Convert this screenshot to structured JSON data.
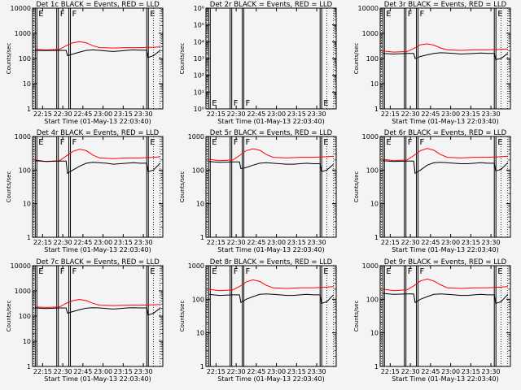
{
  "chart_data": [
    {
      "type": "line",
      "title": "Det 1c BLACK = Events, RED = LLD",
      "xlabel": "Start Time (01-May-13 22:03:40)",
      "ylabel": "Counts/sec",
      "xlim": [
        0,
        97
      ],
      "ylim": [
        1,
        10000
      ],
      "yscale": "log",
      "xticks": [
        "22:15",
        "22:30",
        "22:45",
        "23:00",
        "23:15",
        "23:30"
      ],
      "yticks": [
        "1",
        "10",
        "100",
        "1000",
        "10000"
      ],
      "flags": [
        {
          "label": "E",
          "x": 2
        },
        {
          "label": "F",
          "x": 18
        },
        {
          "label": "F",
          "x": 27
        },
        {
          "label": "E",
          "x": 85
        }
      ],
      "series": [
        {
          "color": "#ff0000",
          "x": [
            2,
            10,
            20,
            25,
            30,
            35,
            40,
            45,
            50,
            60,
            70,
            80,
            90,
            95
          ],
          "values": [
            230,
            220,
            230,
            320,
            420,
            470,
            420,
            320,
            270,
            260,
            270,
            270,
            280,
            290
          ]
        },
        {
          "color": "#000000",
          "x": [
            2,
            10,
            20,
            25,
            26,
            30,
            35,
            40,
            45,
            50,
            55,
            60,
            65,
            70,
            75,
            80,
            85,
            86,
            90,
            95
          ],
          "values": [
            210,
            205,
            210,
            210,
            130,
            150,
            180,
            210,
            220,
            210,
            200,
            190,
            200,
            210,
            220,
            215,
            215,
            110,
            130,
            210
          ]
        }
      ]
    },
    {
      "type": "line",
      "title": "Det 2r BLACK = Events, RED = LLD",
      "xlabel": "Start Time (01-May-13 22:03:40)",
      "ylabel": "Counts/sec",
      "xlim": [
        0,
        97
      ],
      "ylim": [
        1,
        1000000
      ],
      "yscale": "log",
      "xticks": [
        "22:15",
        "22:30",
        "22:45",
        "23:00",
        "23:15",
        "23:30"
      ],
      "yticks": [
        "10⁰",
        "10¹",
        "10²",
        "10³",
        "10⁴",
        "10⁵",
        "10⁶"
      ],
      "flags": [
        {
          "label": "E",
          "x": 2
        },
        {
          "label": "F",
          "x": 18
        },
        {
          "label": "F",
          "x": 27
        },
        {
          "label": "E",
          "x": 85
        }
      ],
      "series": []
    },
    {
      "type": "line",
      "title": "Det 3r BLACK = Events, RED = LLD",
      "xlabel": "Start Time (01-May-13 22:03:40)",
      "ylabel": "Counts/sec",
      "xlim": [
        0,
        97
      ],
      "ylim": [
        1,
        10000
      ],
      "yscale": "log",
      "xticks": [
        "22:15",
        "22:30",
        "22:45",
        "23:00",
        "23:15",
        "23:30"
      ],
      "yticks": [
        "1",
        "10",
        "100",
        "1000",
        "10000"
      ],
      "flags": [
        {
          "label": "E",
          "x": 2
        },
        {
          "label": "F",
          "x": 18
        },
        {
          "label": "F",
          "x": 27
        },
        {
          "label": "E",
          "x": 85
        }
      ],
      "series": [
        {
          "color": "#ff0000",
          "x": [
            2,
            10,
            20,
            25,
            30,
            35,
            40,
            45,
            50,
            60,
            70,
            80,
            90,
            95
          ],
          "values": [
            200,
            180,
            190,
            250,
            350,
            380,
            340,
            260,
            220,
            210,
            220,
            220,
            230,
            240
          ]
        },
        {
          "color": "#000000",
          "x": [
            2,
            10,
            20,
            25,
            26,
            30,
            35,
            40,
            45,
            50,
            55,
            60,
            65,
            70,
            75,
            80,
            85,
            86,
            90,
            95
          ],
          "values": [
            160,
            150,
            160,
            160,
            100,
            120,
            140,
            160,
            170,
            165,
            160,
            150,
            155,
            160,
            165,
            160,
            160,
            90,
            100,
            160
          ]
        }
      ]
    },
    {
      "type": "line",
      "title": "Det 4r BLACK = Events, RED = LLD",
      "xlabel": "Start Time (01-May-13 22:03:40)",
      "ylabel": "Counts/sec",
      "xlim": [
        0,
        97
      ],
      "ylim": [
        1,
        1000
      ],
      "yscale": "log",
      "xticks": [
        "22:15",
        "22:30",
        "22:45",
        "23:00",
        "23:15",
        "23:30"
      ],
      "yticks": [
        "1",
        "10",
        "100",
        "1000"
      ],
      "flags": [
        {
          "label": "E",
          "x": 2
        },
        {
          "label": "F",
          "x": 18
        },
        {
          "label": "F",
          "x": 27
        },
        {
          "label": "E",
          "x": 85
        }
      ],
      "series": [
        {
          "color": "#ff0000",
          "x": [
            2,
            10,
            20,
            25,
            30,
            35,
            40,
            45,
            50,
            60,
            70,
            80,
            90,
            95
          ],
          "values": [
            200,
            180,
            190,
            260,
            360,
            420,
            380,
            280,
            230,
            220,
            230,
            230,
            240,
            250
          ]
        },
        {
          "color": "#000000",
          "x": [
            2,
            10,
            20,
            25,
            26,
            30,
            35,
            40,
            45,
            50,
            55,
            60,
            65,
            70,
            75,
            80,
            85,
            86,
            90,
            95
          ],
          "values": [
            190,
            180,
            185,
            185,
            80,
            100,
            130,
            160,
            170,
            165,
            160,
            150,
            155,
            160,
            165,
            160,
            160,
            90,
            100,
            160
          ]
        }
      ]
    },
    {
      "type": "line",
      "title": "Det 5r BLACK = Events, RED = LLD",
      "xlabel": "Start Time (01-May-13 22:03:40)",
      "ylabel": "Counts/sec",
      "xlim": [
        0,
        97
      ],
      "ylim": [
        1,
        1000
      ],
      "yscale": "log",
      "xticks": [
        "22:15",
        "22:30",
        "22:45",
        "23:00",
        "23:15",
        "23:30"
      ],
      "yticks": [
        "1",
        "10",
        "100",
        "1000"
      ],
      "flags": [
        {
          "label": "E",
          "x": 2
        },
        {
          "label": "F",
          "x": 18
        },
        {
          "label": "F",
          "x": 27
        },
        {
          "label": "E",
          "x": 85
        }
      ],
      "series": [
        {
          "color": "#ff0000",
          "x": [
            2,
            10,
            20,
            25,
            30,
            35,
            40,
            45,
            50,
            60,
            70,
            80,
            90,
            95
          ],
          "values": [
            210,
            190,
            200,
            270,
            380,
            430,
            390,
            290,
            240,
            230,
            240,
            240,
            250,
            260
          ]
        },
        {
          "color": "#000000",
          "x": [
            2,
            10,
            20,
            25,
            26,
            30,
            35,
            40,
            45,
            50,
            55,
            60,
            65,
            70,
            75,
            80,
            85,
            86,
            90,
            95
          ],
          "values": [
            180,
            170,
            175,
            175,
            110,
            120,
            140,
            160,
            165,
            160,
            155,
            150,
            150,
            155,
            160,
            155,
            155,
            90,
            100,
            150
          ]
        }
      ]
    },
    {
      "type": "line",
      "title": "Det 6r BLACK = Events, RED = LLD",
      "xlabel": "Start Time (01-May-13 22:03:40)",
      "ylabel": "Counts/sec",
      "xlim": [
        0,
        97
      ],
      "ylim": [
        1,
        1000
      ],
      "yscale": "log",
      "xticks": [
        "22:15",
        "22:30",
        "22:45",
        "23:00",
        "23:15",
        "23:30"
      ],
      "yticks": [
        "1",
        "10",
        "100",
        "1000"
      ],
      "flags": [
        {
          "label": "E",
          "x": 2
        },
        {
          "label": "F",
          "x": 18
        },
        {
          "label": "F",
          "x": 27
        },
        {
          "label": "E",
          "x": 85
        }
      ],
      "series": [
        {
          "color": "#ff0000",
          "x": [
            2,
            10,
            20,
            25,
            30,
            35,
            40,
            45,
            50,
            60,
            70,
            80,
            90,
            95
          ],
          "values": [
            210,
            190,
            200,
            270,
            380,
            440,
            390,
            290,
            240,
            230,
            240,
            240,
            250,
            260
          ]
        },
        {
          "color": "#000000",
          "x": [
            2,
            10,
            20,
            25,
            26,
            30,
            35,
            40,
            45,
            50,
            55,
            60,
            65,
            70,
            75,
            80,
            85,
            86,
            90,
            95
          ],
          "values": [
            190,
            180,
            185,
            185,
            80,
            100,
            140,
            165,
            170,
            165,
            160,
            155,
            155,
            160,
            165,
            160,
            160,
            95,
            105,
            165
          ]
        }
      ]
    },
    {
      "type": "line",
      "title": "Det 7c BLACK = Events, RED = LLD",
      "xlabel": "Start Time (01-May-13 22:03:40)",
      "ylabel": "Counts/sec",
      "xlim": [
        0,
        97
      ],
      "ylim": [
        1,
        10000
      ],
      "yscale": "log",
      "xticks": [
        "22:15",
        "22:30",
        "22:45",
        "23:00",
        "23:15",
        "23:30"
      ],
      "yticks": [
        "1",
        "10",
        "100",
        "1000",
        "10000"
      ],
      "flags": [
        {
          "label": "E",
          "x": 2
        },
        {
          "label": "F",
          "x": 18
        },
        {
          "label": "F",
          "x": 27
        },
        {
          "label": "E",
          "x": 85
        }
      ],
      "series": [
        {
          "color": "#ff0000",
          "x": [
            2,
            10,
            20,
            25,
            30,
            35,
            40,
            45,
            50,
            60,
            70,
            80,
            90,
            95
          ],
          "values": [
            230,
            220,
            230,
            320,
            410,
            460,
            410,
            320,
            270,
            260,
            270,
            270,
            280,
            290
          ]
        },
        {
          "color": "#000000",
          "x": [
            2,
            10,
            20,
            25,
            26,
            30,
            35,
            40,
            45,
            50,
            55,
            60,
            65,
            70,
            75,
            80,
            85,
            86,
            90,
            95
          ],
          "values": [
            210,
            200,
            210,
            210,
            130,
            150,
            180,
            205,
            215,
            210,
            200,
            190,
            200,
            210,
            215,
            210,
            210,
            110,
            130,
            205
          ]
        }
      ]
    },
    {
      "type": "line",
      "title": "Det 8r BLACK = Events, RED = LLD",
      "xlabel": "Start Time (01-May-13 22:03:40)",
      "ylabel": "Counts/sec",
      "xlim": [
        0,
        97
      ],
      "ylim": [
        1,
        1000
      ],
      "yscale": "log",
      "xticks": [
        "22:15",
        "22:30",
        "22:45",
        "23:00",
        "23:15",
        "23:30"
      ],
      "yticks": [
        "1",
        "10",
        "100",
        "1000"
      ],
      "flags": [
        {
          "label": "E",
          "x": 2
        },
        {
          "label": "F",
          "x": 18
        },
        {
          "label": "F",
          "x": 27
        },
        {
          "label": "E",
          "x": 85
        }
      ],
      "series": [
        {
          "color": "#ff0000",
          "x": [
            2,
            10,
            20,
            25,
            30,
            35,
            40,
            45,
            50,
            60,
            70,
            80,
            90,
            95
          ],
          "values": [
            200,
            180,
            190,
            240,
            330,
            380,
            340,
            260,
            220,
            210,
            220,
            220,
            230,
            240
          ]
        },
        {
          "color": "#000000",
          "x": [
            2,
            10,
            20,
            25,
            26,
            30,
            35,
            40,
            45,
            50,
            55,
            60,
            65,
            70,
            75,
            80,
            85,
            86,
            90,
            95
          ],
          "values": [
            140,
            130,
            135,
            135,
            80,
            100,
            120,
            140,
            145,
            140,
            135,
            130,
            130,
            135,
            140,
            135,
            135,
            75,
            85,
            135
          ]
        }
      ]
    },
    {
      "type": "line",
      "title": "Det 9r BLACK = Events, RED = LLD",
      "xlabel": "Start Time (01-May-13 22:03:40)",
      "ylabel": "Counts/sec",
      "xlim": [
        0,
        97
      ],
      "ylim": [
        1,
        1000
      ],
      "yscale": "log",
      "xticks": [
        "22:15",
        "22:30",
        "22:45",
        "23:00",
        "23:15",
        "23:30"
      ],
      "yticks": [
        "1",
        "10",
        "100",
        "1000"
      ],
      "flags": [
        {
          "label": "E",
          "x": 2
        },
        {
          "label": "F",
          "x": 18
        },
        {
          "label": "F",
          "x": 27
        },
        {
          "label": "E",
          "x": 85
        }
      ],
      "series": [
        {
          "color": "#ff0000",
          "x": [
            2,
            10,
            20,
            25,
            30,
            35,
            40,
            45,
            50,
            60,
            70,
            80,
            90,
            95
          ],
          "values": [
            200,
            180,
            190,
            250,
            350,
            400,
            350,
            270,
            220,
            210,
            220,
            220,
            230,
            240
          ]
        },
        {
          "color": "#000000",
          "x": [
            2,
            10,
            20,
            25,
            26,
            30,
            35,
            40,
            45,
            50,
            55,
            60,
            65,
            70,
            75,
            80,
            85,
            86,
            90,
            95
          ],
          "values": [
            150,
            140,
            145,
            145,
            80,
            100,
            120,
            140,
            145,
            140,
            135,
            130,
            130,
            135,
            140,
            135,
            135,
            75,
            85,
            140
          ]
        }
      ]
    }
  ]
}
